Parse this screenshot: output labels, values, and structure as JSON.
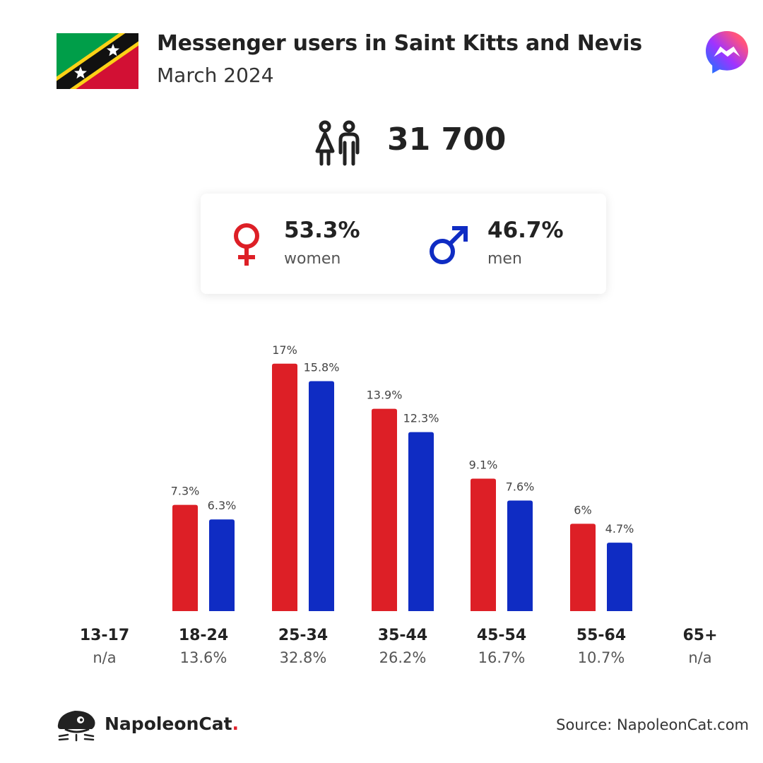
{
  "header": {
    "title": "Messenger users in Saint Kitts and Nevis",
    "subtitle": "March 2024"
  },
  "icons": {
    "flag": "saint-kitts-and-nevis-flag-icon",
    "app": "messenger-logo-icon",
    "people": "people-icon",
    "female": "female-symbol-icon",
    "male": "male-symbol-icon",
    "brand": "napoleoncat-logo-icon"
  },
  "total_users": "31 700",
  "gender": {
    "women": {
      "pct": "53.3%",
      "label": "women"
    },
    "men": {
      "pct": "46.7%",
      "label": "men"
    }
  },
  "colors": {
    "women": "#dd1f26",
    "men": "#0f2cc3",
    "text": "#222222",
    "muted": "#555555"
  },
  "chart_data": {
    "type": "bar",
    "categories": [
      "13-17",
      "18-24",
      "25-34",
      "35-44",
      "45-54",
      "55-64",
      "65+"
    ],
    "category_totals": [
      "n/a",
      "13.6%",
      "32.8%",
      "26.2%",
      "16.7%",
      "10.7%",
      "n/a"
    ],
    "series": [
      {
        "name": "women",
        "values": [
          null,
          7.3,
          17,
          13.9,
          9.1,
          6,
          null
        ],
        "labels": [
          "",
          "7.3%",
          "17%",
          "13.9%",
          "9.1%",
          "6%",
          ""
        ]
      },
      {
        "name": "men",
        "values": [
          null,
          6.3,
          15.8,
          12.3,
          7.6,
          4.7,
          null
        ],
        "labels": [
          "",
          "6.3%",
          "15.8%",
          "12.3%",
          "7.6%",
          "4.7%",
          ""
        ]
      }
    ],
    "title": "",
    "xlabel": "",
    "ylabel": "",
    "ylim": [
      0,
      17
    ],
    "grid": false,
    "legend": "none"
  },
  "footer": {
    "brand_name": "NapoleonCat",
    "brand_dot": ".",
    "source": "Source: NapoleonCat.com"
  }
}
